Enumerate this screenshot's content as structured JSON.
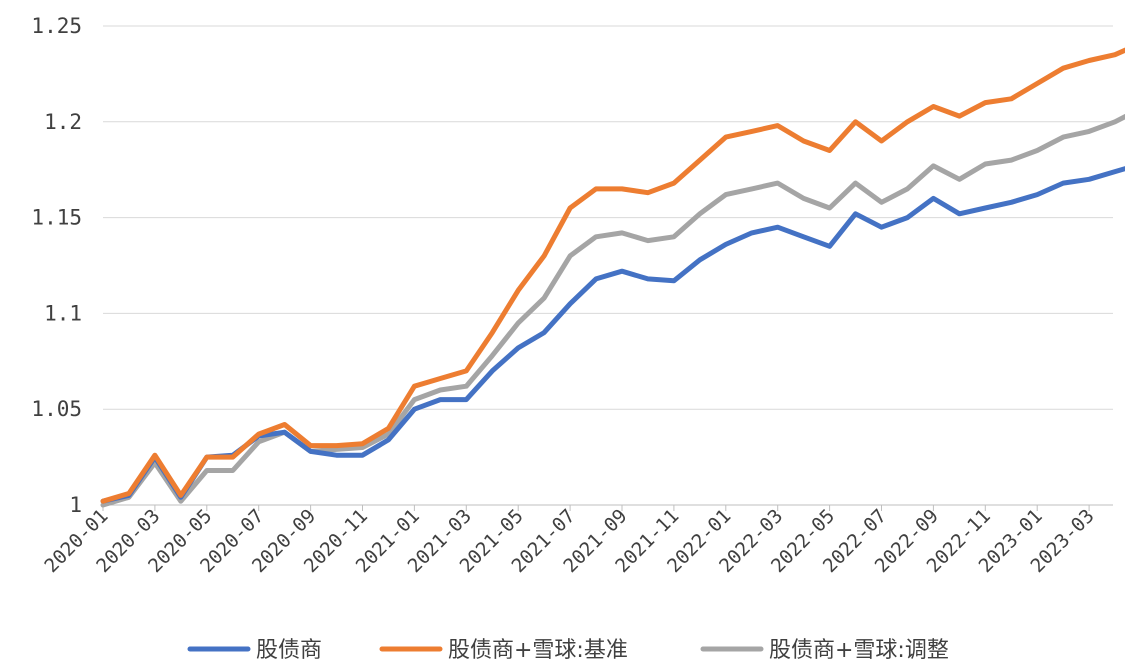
{
  "chart_data": {
    "type": "line",
    "title": "",
    "xlabel": "",
    "ylabel": "",
    "ylim": [
      1.0,
      1.25
    ],
    "yticks": [
      "1",
      "1.05",
      "1.1",
      "1.15",
      "1.2",
      "1.25"
    ],
    "xticks": [
      "2020-01",
      "2020-03",
      "2020-05",
      "2020-07",
      "2020-09",
      "2020-11",
      "2021-01",
      "2021-03",
      "2021-05",
      "2021-07",
      "2021-09",
      "2021-11",
      "2022-01",
      "2022-03",
      "2022-05",
      "2022-07",
      "2022-09",
      "2022-11",
      "2023-01",
      "2023-03"
    ],
    "grid": "horizontal",
    "legend_position": "bottom",
    "x": [
      "2020-01",
      "2020-02",
      "2020-03",
      "2020-04",
      "2020-05",
      "2020-06",
      "2020-07",
      "2020-08",
      "2020-09",
      "2020-10",
      "2020-11",
      "2020-12",
      "2021-01",
      "2021-02",
      "2021-03",
      "2021-04",
      "2021-05",
      "2021-06",
      "2021-07",
      "2021-08",
      "2021-09",
      "2021-10",
      "2021-11",
      "2021-12",
      "2022-01",
      "2022-02",
      "2022-03",
      "2022-04",
      "2022-05",
      "2022-06",
      "2022-07",
      "2022-08",
      "2022-09",
      "2022-10",
      "2022-11",
      "2022-12",
      "2023-01",
      "2023-02",
      "2023-03",
      "2023-04",
      "2023-05"
    ],
    "series": [
      {
        "name": "股债商",
        "color": "#4472C4",
        "values": [
          1.002,
          1.005,
          1.025,
          1.004,
          1.025,
          1.026,
          1.036,
          1.038,
          1.028,
          1.026,
          1.026,
          1.034,
          1.05,
          1.055,
          1.055,
          1.07,
          1.082,
          1.09,
          1.105,
          1.118,
          1.122,
          1.118,
          1.117,
          1.128,
          1.136,
          1.142,
          1.145,
          1.14,
          1.135,
          1.152,
          1.145,
          1.15,
          1.16,
          1.152,
          1.155,
          1.158,
          1.162,
          1.168,
          1.17,
          1.174,
          1.178
        ]
      },
      {
        "name": "股债商+雪球:基准",
        "color": "#ED7D31",
        "values": [
          1.002,
          1.006,
          1.026,
          1.005,
          1.025,
          1.025,
          1.037,
          1.042,
          1.031,
          1.031,
          1.032,
          1.04,
          1.062,
          1.066,
          1.07,
          1.09,
          1.112,
          1.13,
          1.155,
          1.165,
          1.165,
          1.163,
          1.168,
          1.18,
          1.192,
          1.195,
          1.198,
          1.19,
          1.185,
          1.2,
          1.19,
          1.2,
          1.208,
          1.203,
          1.21,
          1.212,
          1.22,
          1.228,
          1.232,
          1.235,
          1.241
        ]
      },
      {
        "name": "股债商+雪球:调整",
        "color": "#A5A5A5",
        "values": [
          1.0,
          1.004,
          1.022,
          1.002,
          1.018,
          1.018,
          1.033,
          1.038,
          1.028,
          1.029,
          1.03,
          1.037,
          1.055,
          1.06,
          1.062,
          1.078,
          1.095,
          1.108,
          1.13,
          1.14,
          1.142,
          1.138,
          1.14,
          1.152,
          1.162,
          1.165,
          1.168,
          1.16,
          1.155,
          1.168,
          1.158,
          1.165,
          1.177,
          1.17,
          1.178,
          1.18,
          1.185,
          1.192,
          1.195,
          1.2,
          1.207
        ]
      }
    ]
  }
}
